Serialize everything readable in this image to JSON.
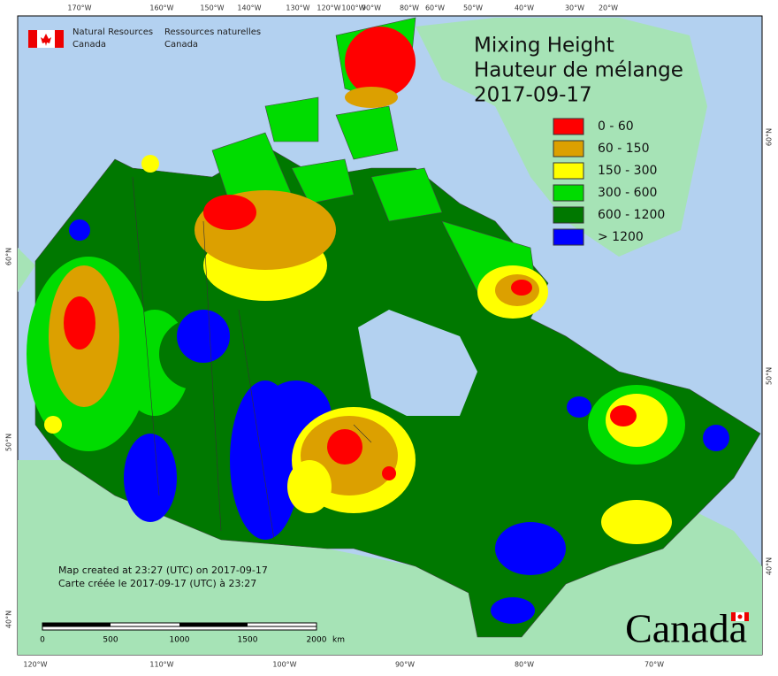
{
  "header": {
    "agency_en": [
      "Natural Resources",
      "Canada"
    ],
    "agency_fr": [
      "Ressources naturelles",
      "Canada"
    ]
  },
  "title": [
    "Mixing Height",
    "Hauteur de mélange",
    "2017-09-17"
  ],
  "legend": [
    {
      "label": "0 - 60",
      "color": "#ff0000"
    },
    {
      "label": "60 - 150",
      "color": "#dca000"
    },
    {
      "label": "150 - 300",
      "color": "#ffff00"
    },
    {
      "label": "300 - 600",
      "color": "#00dc00"
    },
    {
      "label": "600 - 1200",
      "color": "#007800"
    },
    {
      "label": "> 1200",
      "color": "#0000ff"
    }
  ],
  "notes": [
    "Map created at 23:27 (UTC) on 2017-09-17",
    "Carte créée le 2017-09-17 (UTC) à 23:27"
  ],
  "scale": {
    "labels": [
      "0",
      "500",
      "1000",
      "1500",
      "2000"
    ],
    "unit": "km"
  },
  "graticule": {
    "top": [
      "170°W",
      "160°W",
      "150°W",
      "140°W",
      "130°W",
      "120°W",
      "100°W",
      "90°W",
      "80°W",
      "60°W",
      "50°W",
      "40°W",
      "30°W",
      "20°W"
    ],
    "bottom": [
      "120°W",
      "110°W",
      "100°W",
      "90°W",
      "80°W",
      "70°W"
    ],
    "left": [
      "60°N",
      "50°N",
      "40°N"
    ],
    "right": [
      "60°N",
      "50°N",
      "40°N"
    ]
  },
  "wordmark": "Canada"
}
